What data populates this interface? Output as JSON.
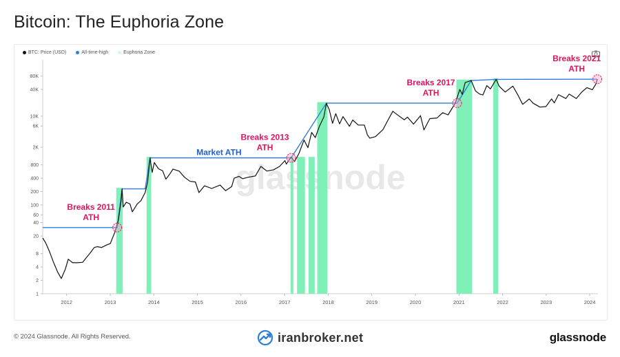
{
  "page": {
    "title": "Bitcoin: The Euphoria Zone",
    "watermark": "glassnode",
    "footer_copyright": "© 2024 Glassnode. All Rights Reserved.",
    "footer_site": "iranbroker.net",
    "footer_brand": "glassnode"
  },
  "legend": [
    {
      "label": "BTC: Price (USD)",
      "color": "#111111"
    },
    {
      "label": "All-time-high",
      "color": "#2f7ed8"
    },
    {
      "label": "Euphoria Zone",
      "color": "#d8f5e6"
    }
  ],
  "colors": {
    "price": "#111111",
    "ath": "#2f7ed8",
    "euphoria": "#7ef0b8",
    "annotation": "#e0135f",
    "market_ath_label": "#1f5fd0"
  },
  "chart_data": {
    "type": "line",
    "title": "Bitcoin: The Euphoria Zone",
    "y_scale": "log",
    "ylim": [
      1,
      150000
    ],
    "xlim": [
      "2011-06-15",
      "2024-03-10"
    ],
    "y_ticks": [
      "1",
      "2",
      "4",
      "8",
      "20",
      "40",
      "60",
      "100",
      "200",
      "400",
      "800",
      "2K",
      "6K",
      "10K",
      "40K",
      "80K"
    ],
    "y_tick_values": [
      1,
      2,
      4,
      8,
      20,
      40,
      60,
      100,
      200,
      400,
      800,
      2000,
      6000,
      10000,
      40000,
      80000
    ],
    "x_ticks": [
      "2012",
      "2013",
      "2014",
      "2015",
      "2016",
      "2017",
      "2018",
      "2019",
      "2020",
      "2021",
      "2022",
      "2023",
      "2024"
    ],
    "x_tick_dates": [
      "2012-01-01",
      "2013-01-01",
      "2014-01-01",
      "2015-01-01",
      "2016-01-01",
      "2017-01-01",
      "2018-01-01",
      "2019-01-01",
      "2020-01-01",
      "2021-01-01",
      "2022-01-01",
      "2023-01-01",
      "2024-01-01"
    ],
    "series": [
      {
        "name": "BTC: Price (USD)",
        "points": [
          [
            "2011-06-15",
            18
          ],
          [
            "2011-07-10",
            14
          ],
          [
            "2011-08-10",
            9
          ],
          [
            "2011-09-15",
            5
          ],
          [
            "2011-10-20",
            3
          ],
          [
            "2011-11-18",
            2.2
          ],
          [
            "2011-12-20",
            3.5
          ],
          [
            "2012-01-15",
            6
          ],
          [
            "2012-02-20",
            5
          ],
          [
            "2012-04-01",
            5
          ],
          [
            "2012-05-15",
            5.1
          ],
          [
            "2012-06-15",
            6.5
          ],
          [
            "2012-07-20",
            8.5
          ],
          [
            "2012-08-20",
            11
          ],
          [
            "2012-09-15",
            11.5
          ],
          [
            "2012-10-20",
            11
          ],
          [
            "2012-12-01",
            12.5
          ],
          [
            "2013-01-01",
            13.5
          ],
          [
            "2013-02-10",
            25
          ],
          [
            "2013-03-10",
            45
          ],
          [
            "2013-04-01",
            120
          ],
          [
            "2013-04-10",
            230
          ],
          [
            "2013-04-20",
            90
          ],
          [
            "2013-05-15",
            115
          ],
          [
            "2013-06-15",
            105
          ],
          [
            "2013-07-05",
            70
          ],
          [
            "2013-08-15",
            105
          ],
          [
            "2013-09-15",
            125
          ],
          [
            "2013-10-20",
            190
          ],
          [
            "2013-11-10",
            330
          ],
          [
            "2013-11-30",
            1150
          ],
          [
            "2013-12-18",
            540
          ],
          [
            "2014-01-05",
            900
          ],
          [
            "2014-02-10",
            650
          ],
          [
            "2014-03-15",
            590
          ],
          [
            "2014-04-12",
            380
          ],
          [
            "2014-05-20",
            520
          ],
          [
            "2014-06-10",
            640
          ],
          [
            "2014-08-01",
            580
          ],
          [
            "2014-09-15",
            420
          ],
          [
            "2014-11-01",
            340
          ],
          [
            "2014-12-15",
            330
          ],
          [
            "2015-01-14",
            190
          ],
          [
            "2015-03-01",
            270
          ],
          [
            "2015-05-01",
            235
          ],
          [
            "2015-07-10",
            280
          ],
          [
            "2015-08-25",
            210
          ],
          [
            "2015-10-15",
            260
          ],
          [
            "2015-11-05",
            400
          ],
          [
            "2015-12-15",
            440
          ],
          [
            "2016-01-15",
            390
          ],
          [
            "2016-03-01",
            420
          ],
          [
            "2016-05-01",
            450
          ],
          [
            "2016-06-16",
            740
          ],
          [
            "2016-08-05",
            580
          ],
          [
            "2016-10-01",
            620
          ],
          [
            "2016-11-20",
            740
          ],
          [
            "2017-01-04",
            1000
          ],
          [
            "2017-01-15",
            830
          ],
          [
            "2017-02-24",
            1200
          ],
          [
            "2017-03-25",
            950
          ],
          [
            "2017-05-01",
            1450
          ],
          [
            "2017-06-12",
            2900
          ],
          [
            "2017-07-15",
            1950
          ],
          [
            "2017-08-15",
            4300
          ],
          [
            "2017-09-15",
            3300
          ],
          [
            "2017-10-20",
            6000
          ],
          [
            "2017-11-25",
            9500
          ],
          [
            "2017-12-17",
            19500
          ],
          [
            "2018-01-10",
            14000
          ],
          [
            "2018-02-06",
            6900
          ],
          [
            "2018-03-05",
            11400
          ],
          [
            "2018-04-06",
            6700
          ],
          [
            "2018-05-05",
            9800
          ],
          [
            "2018-06-28",
            5900
          ],
          [
            "2018-07-25",
            8200
          ],
          [
            "2018-09-10",
            6300
          ],
          [
            "2018-10-31",
            6300
          ],
          [
            "2018-11-25",
            3800
          ],
          [
            "2018-12-15",
            3200
          ],
          [
            "2019-02-01",
            3450
          ],
          [
            "2019-04-05",
            5000
          ],
          [
            "2019-05-15",
            8000
          ],
          [
            "2019-06-26",
            12900
          ],
          [
            "2019-08-15",
            10200
          ],
          [
            "2019-09-30",
            8300
          ],
          [
            "2019-10-27",
            9500
          ],
          [
            "2019-12-17",
            6600
          ],
          [
            "2020-02-13",
            10300
          ],
          [
            "2020-03-13",
            4900
          ],
          [
            "2020-05-01",
            8800
          ],
          [
            "2020-07-01",
            9100
          ],
          [
            "2020-08-17",
            12000
          ],
          [
            "2020-10-01",
            10700
          ],
          [
            "2020-11-30",
            19500
          ],
          [
            "2021-01-08",
            40000
          ],
          [
            "2021-01-28",
            31000
          ],
          [
            "2021-02-21",
            57000
          ],
          [
            "2021-04-13",
            63500
          ],
          [
            "2021-05-19",
            37000
          ],
          [
            "2021-06-22",
            31500
          ],
          [
            "2021-07-20",
            30000
          ],
          [
            "2021-08-22",
            49000
          ],
          [
            "2021-09-21",
            41000
          ],
          [
            "2021-11-08",
            67500
          ],
          [
            "2021-12-04",
            47000
          ],
          [
            "2022-01-23",
            35000
          ],
          [
            "2022-03-28",
            47500
          ],
          [
            "2022-05-12",
            29000
          ],
          [
            "2022-06-18",
            18500
          ],
          [
            "2022-08-12",
            24400
          ],
          [
            "2022-09-15",
            19500
          ],
          [
            "2022-11-10",
            16000
          ],
          [
            "2022-12-30",
            16500
          ],
          [
            "2023-02-15",
            24500
          ],
          [
            "2023-03-10",
            20000
          ],
          [
            "2023-04-14",
            30500
          ],
          [
            "2023-06-15",
            25000
          ],
          [
            "2023-07-13",
            31500
          ],
          [
            "2023-09-11",
            25000
          ],
          [
            "2023-10-24",
            34500
          ],
          [
            "2023-12-08",
            44000
          ],
          [
            "2024-01-23",
            39500
          ],
          [
            "2024-02-20",
            52000
          ],
          [
            "2024-03-05",
            68000
          ]
        ]
      },
      {
        "name": "All-time-high",
        "points": [
          [
            "2011-06-15",
            31
          ],
          [
            "2013-02-28",
            31
          ],
          [
            "2013-04-10",
            230
          ],
          [
            "2013-10-20",
            230
          ],
          [
            "2013-11-30",
            1150
          ],
          [
            "2017-02-24",
            1150
          ],
          [
            "2017-12-17",
            19700
          ],
          [
            "2020-12-16",
            19700
          ],
          [
            "2021-04-13",
            63500
          ],
          [
            "2021-11-08",
            67500
          ],
          [
            "2024-03-05",
            68000
          ]
        ]
      }
    ],
    "euphoria_zones": [
      [
        "2013-02-20",
        "2013-04-15"
      ],
      [
        "2013-11-01",
        "2013-12-10"
      ],
      [
        "2017-02-20",
        "2017-03-15"
      ],
      [
        "2017-04-15",
        "2017-06-20"
      ],
      [
        "2017-07-20",
        "2017-09-10"
      ],
      [
        "2017-10-01",
        "2017-12-25"
      ],
      [
        "2020-12-10",
        "2021-04-20"
      ],
      [
        "2021-10-15",
        "2021-11-25"
      ]
    ],
    "annotations": [
      {
        "text": "Breaks 2011",
        "text2": "ATH",
        "date": "2013-02-28",
        "value": 31,
        "kind": "breakout"
      },
      {
        "text": "Market ATH",
        "text2": "",
        "date": "2015-07-01",
        "value": 1150,
        "kind": "market_ath"
      },
      {
        "text": "Breaks 2013",
        "text2": "ATH",
        "date": "2017-02-24",
        "value": 1150,
        "kind": "breakout"
      },
      {
        "text": "Breaks 2017",
        "text2": "ATH",
        "date": "2020-12-16",
        "value": 19700,
        "kind": "breakout"
      },
      {
        "text": "Breaks 2021",
        "text2": "ATH",
        "date": "2024-03-05",
        "value": 68000,
        "kind": "breakout"
      }
    ]
  }
}
